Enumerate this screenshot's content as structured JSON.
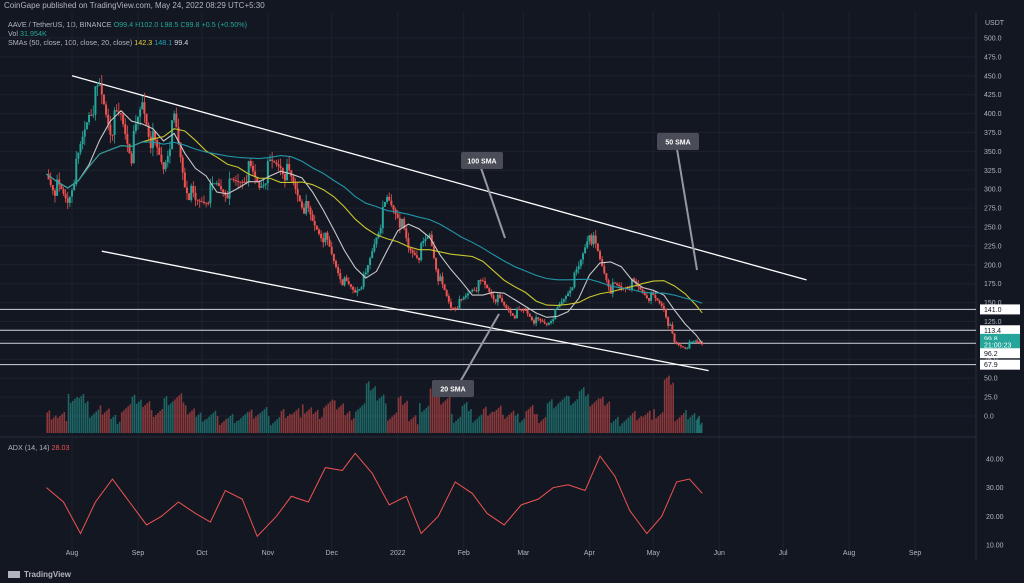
{
  "header": {
    "published_text": "CoinGape published on TradingView.com, May 24, 2022 08:29 UTC+5:30"
  },
  "legend": {
    "symbol": "AAVE / TetherUS, 1D, BINANCE",
    "ohlc": "O99.4 H102.0 L98.5 C99.8 +0.5 (+0.50%)",
    "vol_label": "Vol",
    "vol_value": "31.954K",
    "sma_label": "SMAs (50, close, 100, close, 20, close)",
    "sma50": "142.3",
    "sma100": "148.1",
    "sma20": "99.4",
    "adx_label": "ADX (14, 14)",
    "adx_value": "28.03"
  },
  "footer": {
    "brand": "TradingView"
  },
  "colors": {
    "background": "#131722",
    "up": "#26a69a",
    "down": "#ef5350",
    "sma50": "#c9c72f",
    "sma100": "#2196a9",
    "sma20": "#c8c8c8",
    "adx": "#ef5350"
  },
  "chart_data": [
    {
      "type": "line",
      "title": "AAVE / TetherUS, 1D, BINANCE",
      "xlabel": "",
      "ylabel": "USDT",
      "ylim": [
        0,
        525
      ],
      "x_ticks": [
        "Aug",
        "Sep",
        "Oct",
        "Nov",
        "Dec",
        "2022",
        "Feb",
        "Mar",
        "Apr",
        "May",
        "Jun",
        "Jul",
        "Aug",
        "Sep"
      ],
      "y_ticks": [
        "500.0",
        "475.0",
        "450.0",
        "425.0",
        "400.0",
        "375.0",
        "350.0",
        "325.0",
        "300.0",
        "275.0",
        "250.0",
        "225.0",
        "200.0",
        "175.0",
        "150.0",
        "125.0",
        "100.0",
        "75.0",
        "50.0",
        "25.0",
        "0.0"
      ],
      "price_labels": [
        "141.0",
        "113.4",
        "99.8",
        "21:00:23",
        "96.2",
        "67.9"
      ],
      "horizontal_levels": [
        141.0,
        113.4,
        96.2,
        67.9
      ],
      "annotations": [
        "100 SMA",
        "50 SMA",
        "20 SMA"
      ],
      "trendlines": [
        {
          "name": "resistance",
          "from": [
            "Aug 1, 2021",
            450
          ],
          "to": [
            "Jul 12, 2022",
            180
          ]
        },
        {
          "name": "support",
          "from": [
            "Aug 15, 2021",
            218
          ],
          "to": [
            "May 27, 2022",
            60
          ]
        }
      ],
      "close_series": [
        [
          "2021-07-20",
          320
        ],
        [
          "2021-07-25",
          300
        ],
        [
          "2021-07-30",
          285
        ],
        [
          "2021-08-04",
          340
        ],
        [
          "2021-08-09",
          405
        ],
        [
          "2021-08-14",
          430
        ],
        [
          "2021-08-19",
          385
        ],
        [
          "2021-08-24",
          395
        ],
        [
          "2021-08-29",
          350
        ],
        [
          "2021-09-03",
          415
        ],
        [
          "2021-09-08",
          360
        ],
        [
          "2021-09-13",
          330
        ],
        [
          "2021-09-18",
          390
        ],
        [
          "2021-09-23",
          310
        ],
        [
          "2021-09-28",
          280
        ],
        [
          "2021-10-03",
          290
        ],
        [
          "2021-10-08",
          305
        ],
        [
          "2021-10-13",
          300
        ],
        [
          "2021-10-18",
          310
        ],
        [
          "2021-10-23",
          325
        ],
        [
          "2021-10-28",
          305
        ],
        [
          "2021-11-02",
          330
        ],
        [
          "2021-11-07",
          335
        ],
        [
          "2021-11-12",
          310
        ],
        [
          "2021-11-17",
          285
        ],
        [
          "2021-11-22",
          255
        ],
        [
          "2021-11-27",
          240
        ],
        [
          "2021-12-02",
          205
        ],
        [
          "2021-12-07",
          175
        ],
        [
          "2021-12-12",
          165
        ],
        [
          "2021-12-17",
          185
        ],
        [
          "2021-12-22",
          240
        ],
        [
          "2021-12-27",
          285
        ],
        [
          "2022-01-01",
          270
        ],
        [
          "2022-01-06",
          220
        ],
        [
          "2022-01-11",
          215
        ],
        [
          "2022-01-16",
          240
        ],
        [
          "2022-01-21",
          175
        ],
        [
          "2022-01-26",
          145
        ],
        [
          "2022-01-31",
          150
        ],
        [
          "2022-02-05",
          170
        ],
        [
          "2022-02-10",
          175
        ],
        [
          "2022-02-15",
          160
        ],
        [
          "2022-02-20",
          145
        ],
        [
          "2022-02-25",
          135
        ],
        [
          "2022-03-02",
          140
        ],
        [
          "2022-03-07",
          125
        ],
        [
          "2022-03-12",
          122
        ],
        [
          "2022-03-17",
          140
        ],
        [
          "2022-03-22",
          165
        ],
        [
          "2022-03-27",
          195
        ],
        [
          "2022-04-01",
          245
        ],
        [
          "2022-04-06",
          205
        ],
        [
          "2022-04-11",
          170
        ],
        [
          "2022-04-16",
          170
        ],
        [
          "2022-04-21",
          175
        ],
        [
          "2022-04-26",
          165
        ],
        [
          "2022-05-01",
          155
        ],
        [
          "2022-05-06",
          145
        ],
        [
          "2022-05-11",
          95
        ],
        [
          "2022-05-16",
          92
        ],
        [
          "2022-05-21",
          98
        ],
        [
          "2022-05-24",
          99.8
        ]
      ]
    },
    {
      "type": "line",
      "title": "ADX (14, 14)",
      "ylim": [
        10,
        45
      ],
      "y_ticks": [
        "40.00",
        "30.00",
        "20.00",
        "10.00"
      ],
      "series": [
        {
          "name": "ADX",
          "values": [
            [
              "2021-07-20",
              30
            ],
            [
              "2021-07-28",
              25
            ],
            [
              "2021-08-05",
              14
            ],
            [
              "2021-08-12",
              25
            ],
            [
              "2021-08-20",
              33
            ],
            [
              "2021-08-28",
              25
            ],
            [
              "2021-09-05",
              17
            ],
            [
              "2021-09-12",
              20
            ],
            [
              "2021-09-20",
              25
            ],
            [
              "2021-09-28",
              21
            ],
            [
              "2021-10-05",
              18
            ],
            [
              "2021-10-12",
              29
            ],
            [
              "2021-10-20",
              26
            ],
            [
              "2021-10-27",
              13
            ],
            [
              "2021-11-05",
              20
            ],
            [
              "2021-11-12",
              27
            ],
            [
              "2021-11-20",
              25
            ],
            [
              "2021-11-28",
              37
            ],
            [
              "2021-12-06",
              36
            ],
            [
              "2021-12-12",
              42
            ],
            [
              "2021-12-20",
              35
            ],
            [
              "2021-12-28",
              24
            ],
            [
              "2022-01-05",
              27
            ],
            [
              "2022-01-12",
              14
            ],
            [
              "2022-01-20",
              20
            ],
            [
              "2022-01-28",
              32
            ],
            [
              "2022-02-05",
              28
            ],
            [
              "2022-02-12",
              21
            ],
            [
              "2022-02-20",
              17
            ],
            [
              "2022-02-28",
              24
            ],
            [
              "2022-03-08",
              26
            ],
            [
              "2022-03-15",
              30
            ],
            [
              "2022-03-22",
              31
            ],
            [
              "2022-03-30",
              29
            ],
            [
              "2022-04-06",
              41
            ],
            [
              "2022-04-13",
              34
            ],
            [
              "2022-04-20",
              22
            ],
            [
              "2022-04-28",
              14
            ],
            [
              "2022-05-05",
              20
            ],
            [
              "2022-05-12",
              32
            ],
            [
              "2022-05-18",
              33
            ],
            [
              "2022-05-24",
              28.03
            ]
          ]
        }
      ]
    }
  ]
}
